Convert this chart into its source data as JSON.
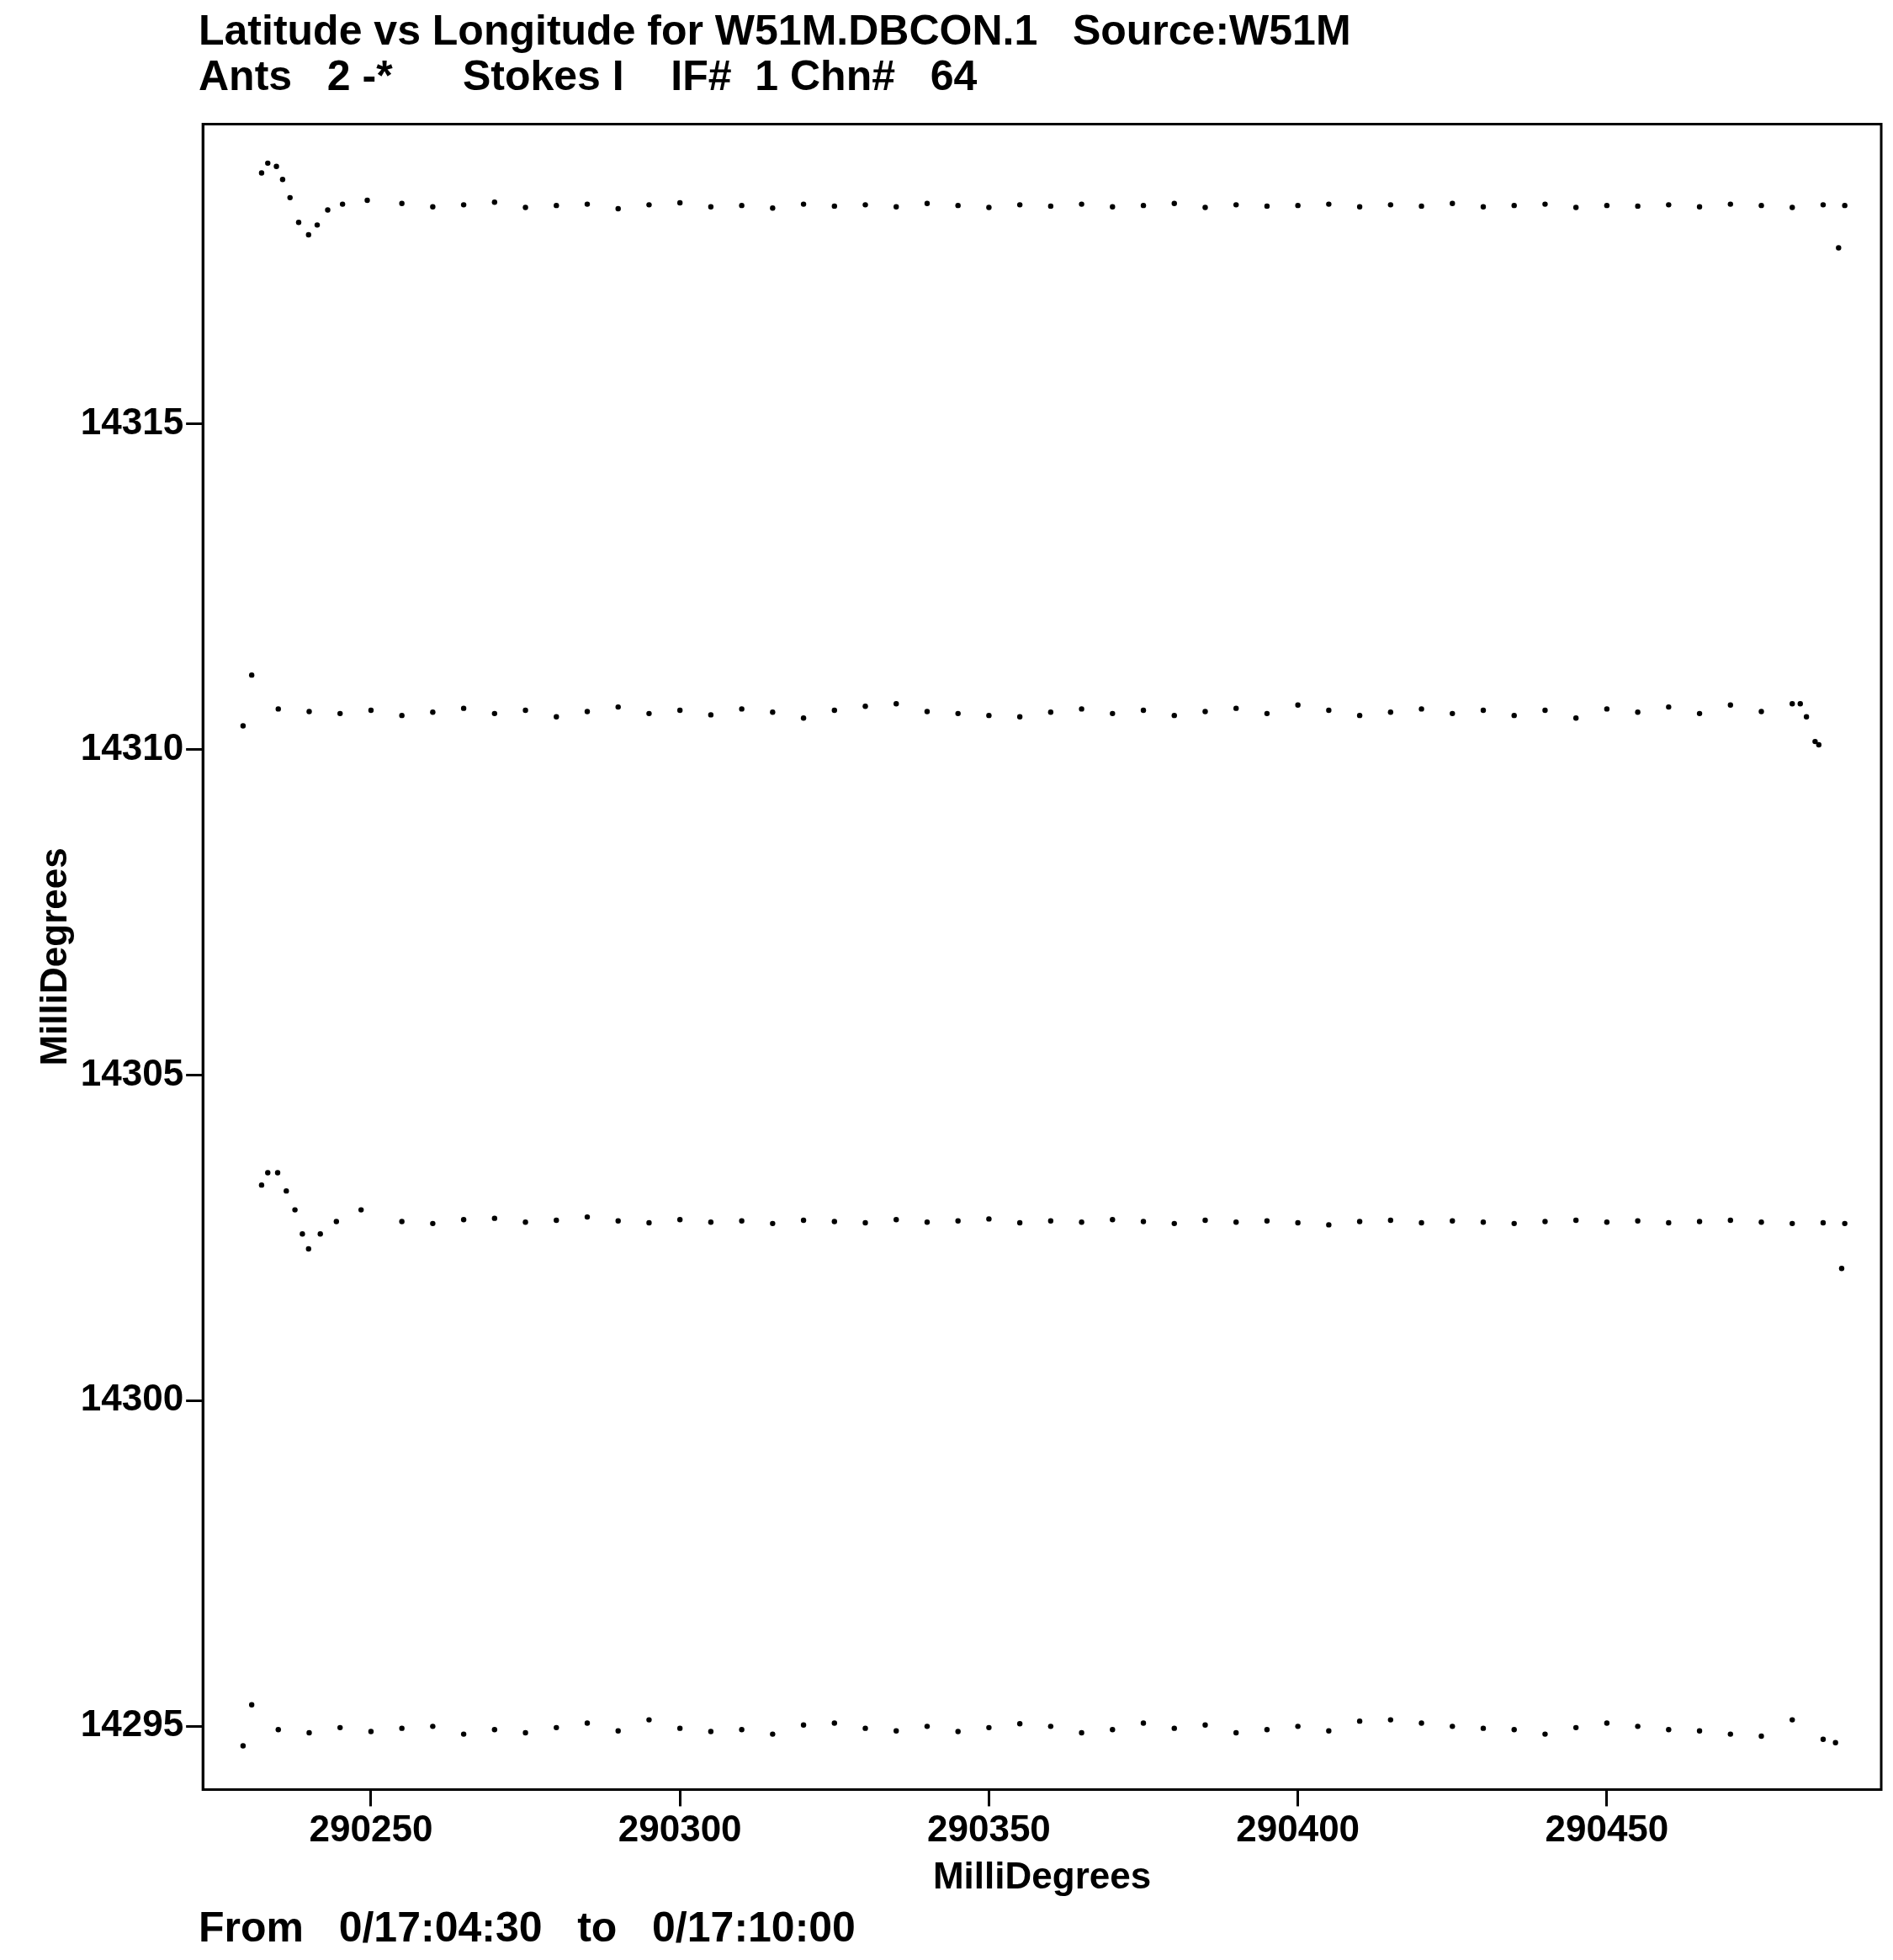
{
  "chart_data": {
    "type": "scatter",
    "title": "Latitude vs Longitude for W51M.DBCON.1   Source:W51M",
    "subtitle": "Ants   2 -*      Stokes I    IF#  1 Chn#   64",
    "xlabel": "MilliDegrees",
    "ylabel": "MilliDegrees",
    "annotations": [
      "From   0/17:04:30   to   0/17:10:00"
    ],
    "xlim": [
      290222.8,
      290494.4
    ],
    "ylim": [
      14294.03,
      14319.6
    ],
    "xticks": [
      290250,
      290300,
      290350,
      290400,
      290450
    ],
    "yticks": [
      14295,
      14300,
      14305,
      14310,
      14315
    ],
    "grid": false,
    "legend": false,
    "marker": "circle",
    "series": [
      {
        "color": "#000000",
        "x": [
          290232.3,
          290233.3,
          290234.7,
          290235.7,
          290236.9,
          290238.3,
          290239.9,
          290241.3,
          290243.0,
          290245.4,
          290249.4,
          290255,
          290260,
          290265,
          290270,
          290275,
          290280,
          290285,
          290290,
          290295,
          290300,
          290305,
          290310,
          290315,
          290320,
          290325,
          290330,
          290335,
          290340,
          290345,
          290350,
          290355,
          290360,
          290365,
          290370,
          290375,
          290380,
          290385,
          290390,
          290395,
          290400,
          290405,
          290410,
          290415,
          290420,
          290425,
          290430,
          290435,
          290440,
          290445,
          290450,
          290455,
          290460,
          290465,
          290470,
          290475,
          290480,
          290485,
          290488.5,
          290487.5
        ],
        "values": [
          14318.85,
          14319.0,
          14318.95,
          14318.75,
          14318.47,
          14318.09,
          14317.9,
          14318.05,
          14318.28,
          14318.37,
          14318.43,
          14318.38,
          14318.33,
          14318.36,
          14318.4,
          14318.32,
          14318.35,
          14318.37,
          14318.3,
          14318.36,
          14318.39,
          14318.33,
          14318.35,
          14318.31,
          14318.37,
          14318.34,
          14318.36,
          14318.33,
          14318.38,
          14318.35,
          14318.32,
          14318.36,
          14318.34,
          14318.37,
          14318.33,
          14318.35,
          14318.38,
          14318.32,
          14318.36,
          14318.34,
          14318.35,
          14318.37,
          14318.33,
          14318.36,
          14318.34,
          14318.38,
          14318.33,
          14318.35,
          14318.37,
          14318.32,
          14318.35,
          14318.34,
          14318.36,
          14318.33,
          14318.37,
          14318.35,
          14318.32,
          14318.36,
          14318.35,
          14317.7
        ]
      },
      {
        "color": "#000000",
        "x": [
          290229.3,
          290230.7,
          290235,
          290240,
          290245,
          290250,
          290255,
          290260,
          290265,
          290270,
          290275,
          290280,
          290285,
          290290,
          290295,
          290300,
          290305,
          290310,
          290315,
          290320,
          290325,
          290330,
          290335,
          290340,
          290345,
          290350,
          290355,
          290360,
          290365,
          290370,
          290375,
          290380,
          290385,
          290390,
          290395,
          290400,
          290405,
          290410,
          290415,
          290420,
          290425,
          290430,
          290435,
          290440,
          290445,
          290450,
          290455,
          290460,
          290465,
          290470,
          290475,
          290480,
          290481.3,
          290482.3,
          290483.7,
          290484.3
        ],
        "values": [
          14310.36,
          14311.14,
          14310.62,
          14310.58,
          14310.55,
          14310.6,
          14310.52,
          14310.57,
          14310.63,
          14310.55,
          14310.6,
          14310.5,
          14310.58,
          14310.65,
          14310.55,
          14310.6,
          14310.53,
          14310.62,
          14310.57,
          14310.48,
          14310.6,
          14310.66,
          14310.7,
          14310.58,
          14310.55,
          14310.52,
          14310.5,
          14310.57,
          14310.62,
          14310.55,
          14310.6,
          14310.52,
          14310.58,
          14310.63,
          14310.55,
          14310.68,
          14310.6,
          14310.52,
          14310.57,
          14310.62,
          14310.55,
          14310.6,
          14310.52,
          14310.6,
          14310.48,
          14310.62,
          14310.57,
          14310.65,
          14310.55,
          14310.68,
          14310.58,
          14310.7,
          14310.7,
          14310.5,
          14310.12,
          14310.07
        ]
      },
      {
        "color": "#000000",
        "x": [
          290232.3,
          290233.3,
          290234.9,
          290236.3,
          290237.7,
          290238.9,
          290239.9,
          290241.8,
          290244.4,
          290248.4,
          290255,
          290260,
          290265,
          290270,
          290275,
          290280,
          290285,
          290290,
          290295,
          290300,
          290305,
          290310,
          290315,
          290320,
          290325,
          290330,
          290335,
          290340,
          290345,
          290350,
          290355,
          290360,
          290365,
          290370,
          290375,
          290380,
          290385,
          290390,
          290395,
          290400,
          290405,
          290410,
          290415,
          290420,
          290425,
          290430,
          290435,
          290440,
          290445,
          290450,
          290455,
          290460,
          290465,
          290470,
          290475,
          290480,
          290485,
          290488.5,
          290488
        ],
        "values": [
          14303.31,
          14303.5,
          14303.5,
          14303.22,
          14302.93,
          14302.56,
          14302.33,
          14302.56,
          14302.75,
          14302.93,
          14302.75,
          14302.72,
          14302.78,
          14302.8,
          14302.74,
          14302.77,
          14302.82,
          14302.76,
          14302.73,
          14302.78,
          14302.74,
          14302.76,
          14302.72,
          14302.77,
          14302.75,
          14302.73,
          14302.78,
          14302.74,
          14302.76,
          14302.79,
          14302.73,
          14302.76,
          14302.74,
          14302.78,
          14302.75,
          14302.72,
          14302.77,
          14302.74,
          14302.76,
          14302.73,
          14302.7,
          14302.75,
          14302.77,
          14302.73,
          14302.76,
          14302.74,
          14302.72,
          14302.75,
          14302.77,
          14302.74,
          14302.76,
          14302.73,
          14302.75,
          14302.77,
          14302.74,
          14302.72,
          14302.73,
          14302.72,
          14302.03
        ]
      },
      {
        "color": "#000000",
        "x": [
          290229.3,
          290230.7,
          290235,
          290240,
          290245,
          290250,
          290255,
          290260,
          290265,
          290270,
          290275,
          290280,
          290285,
          290290,
          290295,
          290300,
          290305,
          290310,
          290315,
          290320,
          290325,
          290330,
          290335,
          290340,
          290345,
          290350,
          290355,
          290360,
          290365,
          290370,
          290375,
          290380,
          290385,
          290390,
          290395,
          290400,
          290405,
          290410,
          290415,
          290420,
          290425,
          290430,
          290435,
          290440,
          290445,
          290450,
          290455,
          290460,
          290465,
          290470,
          290475,
          290480,
          290485,
          290487
        ],
        "values": [
          14294.7,
          14295.33,
          14294.95,
          14294.9,
          14294.98,
          14294.92,
          14294.97,
          14295.0,
          14294.88,
          14294.95,
          14294.9,
          14294.98,
          14295.05,
          14294.93,
          14295.1,
          14294.97,
          14294.92,
          14294.95,
          14294.88,
          14295.02,
          14295.05,
          14294.97,
          14294.93,
          14295.0,
          14294.92,
          14294.98,
          14295.04,
          14295.0,
          14294.9,
          14294.95,
          14295.05,
          14294.97,
          14295.02,
          14294.9,
          14294.95,
          14295.0,
          14294.93,
          14295.08,
          14295.1,
          14295.05,
          14295.0,
          14294.97,
          14294.95,
          14294.88,
          14294.98,
          14295.05,
          14295.0,
          14294.95,
          14294.93,
          14294.88,
          14294.85,
          14295.1,
          14294.8,
          14294.75
        ]
      }
    ]
  }
}
